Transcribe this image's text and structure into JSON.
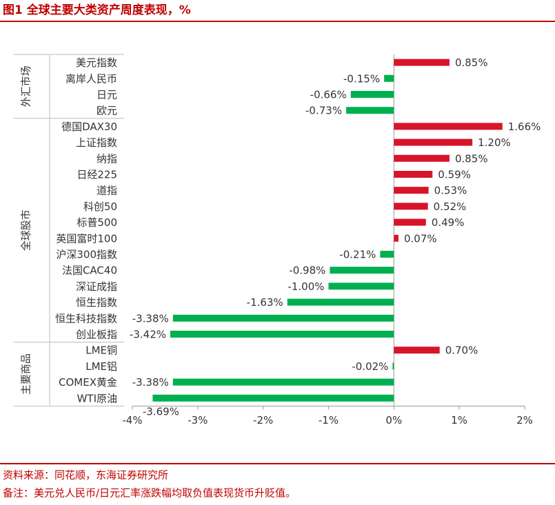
{
  "chart_data": {
    "type": "bar",
    "orientation": "horizontal",
    "title": "图1  全球主要大类资产周度表现，%",
    "source": "资料来源：同花顺，东海证券研究所",
    "note": "备注：美元兑人民币/日元汇率涨跌幅均取负值表现货币升贬值。",
    "positive_color": "#d7142a",
    "negative_color": "#00b050",
    "xlim": [
      -4,
      2
    ],
    "xticks": [
      {
        "value": -4,
        "label": "-4%"
      },
      {
        "value": -3,
        "label": "-3%"
      },
      {
        "value": -2,
        "label": "-2%"
      },
      {
        "value": -1,
        "label": "-1%"
      },
      {
        "value": 0,
        "label": "0%"
      },
      {
        "value": 1,
        "label": "1%"
      },
      {
        "value": 2,
        "label": "2%"
      }
    ],
    "groups": [
      {
        "label": "外汇市场",
        "categories": [
          "美元指数",
          "离岸人民币",
          "日元",
          "欧元"
        ],
        "values": [
          0.85,
          -0.15,
          -0.66,
          -0.73
        ],
        "value_labels": [
          "0.85%",
          "-0.15%",
          "-0.66%",
          "-0.73%"
        ]
      },
      {
        "label": "全球股市",
        "categories": [
          "德国DAX30",
          "上证指数",
          "纳指",
          "日经225",
          "道指",
          "科创50",
          "标普500",
          "英国富时100",
          "沪深300指数",
          "法国CAC40",
          "深证成指",
          "恒生指数",
          "恒生科技指数",
          "创业板指"
        ],
        "values": [
          1.66,
          1.2,
          0.85,
          0.59,
          0.53,
          0.52,
          0.49,
          0.07,
          -0.21,
          -0.98,
          -1.0,
          -1.63,
          -3.38,
          -3.42
        ],
        "value_labels": [
          "1.66%",
          "1.20%",
          "0.85%",
          "0.59%",
          "0.53%",
          "0.52%",
          "0.49%",
          "0.07%",
          "-0.21%",
          "-0.98%",
          "-1.00%",
          "-1.63%",
          "-3.38%",
          "-3.42%"
        ]
      },
      {
        "label": "主要商品",
        "categories": [
          "LME铜",
          "LME铝",
          "COMEX黄金",
          "WTI原油"
        ],
        "values": [
          0.7,
          -0.02,
          -3.38,
          -3.69
        ],
        "value_labels": [
          "0.70%",
          "-0.02%",
          "-3.38%",
          "-3.69%"
        ]
      }
    ]
  }
}
